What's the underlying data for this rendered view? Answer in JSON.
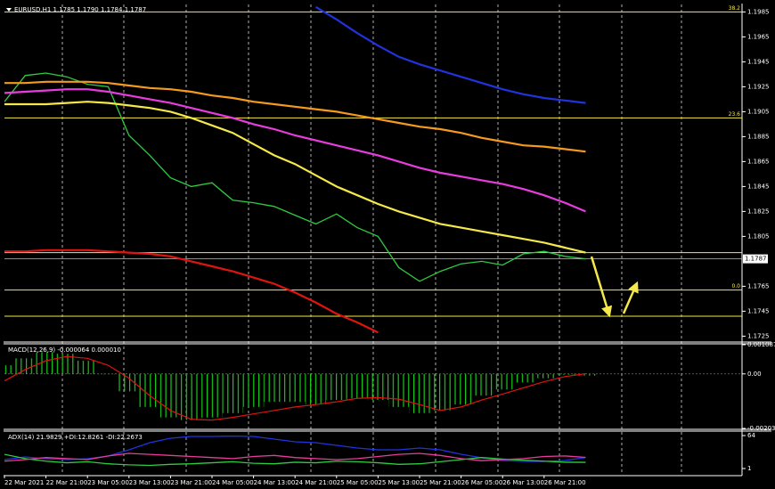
{
  "chart_data": [
    {
      "type": "line",
      "title": "EURUSD,H1  1.1785 1.1790 1.1784 1.1787",
      "categories": [
        "22 Mar 2021",
        null,
        "22 Mar 21:00",
        null,
        "23 Mar 05:00",
        null,
        "23 Mar 13:00",
        null,
        "23 Mar 21:00",
        null,
        "24 Mar 05:00",
        null,
        "24 Mar 13:00",
        null,
        "24 Mar 21:00",
        null,
        "25 Mar 05:00",
        null,
        "25 Mar 13:00",
        null,
        "25 Mar 21:00",
        null,
        "26 Mar 05:00",
        null,
        "26 Mar 13:00",
        null,
        "26 Mar 21:00",
        null,
        null
      ],
      "series": [
        {
          "color": "#2ecc40",
          "values": [
            1.1913,
            1.1934,
            1.1936,
            1.1933,
            1.1927,
            1.1925,
            1.1886,
            1.187,
            1.1852,
            1.1845,
            1.1848,
            1.1834,
            1.1832,
            1.1829,
            1.1822,
            1.1815,
            1.1823,
            1.1812,
            1.1805,
            1.178,
            1.1769,
            1.1777,
            1.1783,
            1.1785,
            1.1782,
            1.1791,
            1.1793,
            1.1789,
            1.1787
          ]
        },
        {
          "color": "#f5e84a",
          "values": [
            1.1911,
            1.1911,
            1.1911,
            1.1912,
            1.1913,
            1.1912,
            1.191,
            1.1908,
            1.1905,
            1.19,
            1.1894,
            1.1888,
            1.1879,
            1.187,
            1.1863,
            1.1854,
            1.1845,
            1.1838,
            1.1831,
            1.1825,
            1.182,
            1.1815,
            1.1812,
            1.1809,
            1.1806,
            1.1803,
            1.18,
            1.1796,
            1.1792
          ]
        },
        {
          "color": "#f59a1e",
          "values": [
            1.1928,
            1.1928,
            1.1929,
            1.1929,
            1.1929,
            1.1928,
            1.1926,
            1.1924,
            1.1923,
            1.1921,
            1.1918,
            1.1916,
            1.1913,
            1.1911,
            1.1909,
            1.1907,
            1.1905,
            1.1902,
            1.1899,
            1.1896,
            1.1893,
            1.1891,
            1.1888,
            1.1884,
            1.1881,
            1.1878,
            1.1877,
            1.1875,
            1.1873
          ]
        },
        {
          "color": "#e83ce0",
          "values": [
            1.192,
            1.1921,
            1.1922,
            1.1923,
            1.1923,
            1.1921,
            1.1918,
            1.1915,
            1.1912,
            1.1908,
            1.1904,
            1.19,
            1.1895,
            1.1891,
            1.1886,
            1.1882,
            1.1878,
            1.1874,
            1.187,
            1.1865,
            1.186,
            1.1856,
            1.1853,
            1.185,
            1.1847,
            1.1843,
            1.1838,
            1.1832,
            1.1825
          ]
        },
        {
          "color": "#2233dd",
          "values": [
            null,
            null,
            null,
            null,
            null,
            null,
            null,
            null,
            null,
            null,
            null,
            null,
            null,
            null,
            null,
            1.1989,
            1.1979,
            1.1968,
            1.1958,
            1.1949,
            1.1943,
            1.1938,
            1.1933,
            1.1928,
            1.1923,
            1.1919,
            1.1916,
            1.1914,
            1.1912
          ]
        },
        {
          "color": "#e0140f",
          "values": [
            1.1793,
            1.1793,
            1.1794,
            1.1794,
            1.1794,
            1.1793,
            1.1792,
            1.1791,
            1.1789,
            1.1785,
            1.1781,
            1.1777,
            1.1772,
            1.1767,
            1.176,
            1.1752,
            1.1743,
            1.1736,
            1.1728,
            null,
            null,
            null,
            null,
            null,
            null,
            null,
            null,
            null,
            null
          ]
        }
      ],
      "ylim": [
        1.1721,
        1.1991
      ],
      "yticks": [
        1.1985,
        1.1965,
        1.1945,
        1.1925,
        1.1905,
        1.1885,
        1.1865,
        1.1845,
        1.1825,
        1.1805,
        1.1765,
        1.1745,
        1.1725
      ],
      "levels": [
        {
          "value": 1.1985,
          "label": "38.2"
        },
        {
          "value": 1.19,
          "label": "23.6"
        },
        {
          "value": 1.1792
        },
        {
          "value": 1.1762,
          "label": "0.0"
        },
        {
          "value": 1.1741
        }
      ],
      "level_color": "#f5e84a",
      "last_price": 1.1787
    },
    {
      "type": "macd",
      "title": "MACD(12,26,9) -0.000064 0.000010",
      "series": [
        {
          "kind": "histogram",
          "color": "#19c819",
          "values": [
            0.00032,
            0.00058,
            0.00081,
            0.00075,
            0.00049,
            0,
            -0.00065,
            -0.00123,
            -0.00162,
            -0.00172,
            -0.00162,
            -0.00146,
            -0.00123,
            -0.00104,
            -0.00104,
            -0.00114,
            -0.00097,
            -0.00091,
            -0.00097,
            -0.00123,
            -0.00146,
            -0.00136,
            -0.00114,
            -0.00081,
            -0.00058,
            -0.00032,
            -0.00016,
            -3e-05,
            -6.4e-05
          ]
        },
        {
          "kind": "line",
          "color": "#e0140f",
          "values": [
            -0.00026,
            0.00016,
            0.00049,
            0.00065,
            0.00058,
            0.00032,
            -0.00016,
            -0.00081,
            -0.00136,
            -0.00169,
            -0.00172,
            -0.00162,
            -0.00149,
            -0.00136,
            -0.00123,
            -0.00114,
            -0.00104,
            -0.00091,
            -0.00088,
            -0.00094,
            -0.00114,
            -0.00136,
            -0.00123,
            -0.00097,
            -0.00075,
            -0.00052,
            -0.00029,
            -0.0001,
            1e-05
          ]
        }
      ],
      "ylim": [
        -0.00203,
        0.001087
      ],
      "yticks": [
        0.001087,
        {
          "value": 0,
          "label": "0.00"
        },
        -0.00203
      ]
    },
    {
      "type": "line",
      "title": "ADX(14) 21.9829 +DI:12.8261 -DI:22.2673",
      "series": [
        {
          "color": "#2233dd",
          "values": [
            18,
            23.1,
            19.7,
            18,
            19.7,
            24.8,
            36.8,
            50.4,
            58.9,
            62.3,
            62.3,
            63,
            62.3,
            57.2,
            52.1,
            50.4,
            45.3,
            40.2,
            36.8,
            36.8,
            40.2,
            36.8,
            28.2,
            21.4,
            16.3,
            14.6,
            14.6,
            16.3,
            21.9829
          ]
        },
        {
          "color": "#2ecc40",
          "values": [
            28,
            20,
            15,
            12,
            14,
            10,
            8,
            7,
            9,
            10,
            12,
            14,
            11,
            10,
            13,
            12,
            15,
            14,
            12,
            9,
            10,
            14,
            18,
            22,
            19,
            17,
            15,
            13,
            12.8261
          ]
        },
        {
          "color": "#e83c9c",
          "values": [
            15,
            18,
            22,
            20,
            18,
            25,
            30,
            28,
            26,
            24,
            22,
            20,
            24,
            26,
            22,
            20,
            18,
            20,
            24,
            28,
            30,
            26,
            20,
            16,
            18,
            20,
            24,
            25,
            22.2673
          ]
        }
      ],
      "ylim": [
        1,
        64
      ],
      "yticks": [
        64,
        1
      ]
    }
  ]
}
